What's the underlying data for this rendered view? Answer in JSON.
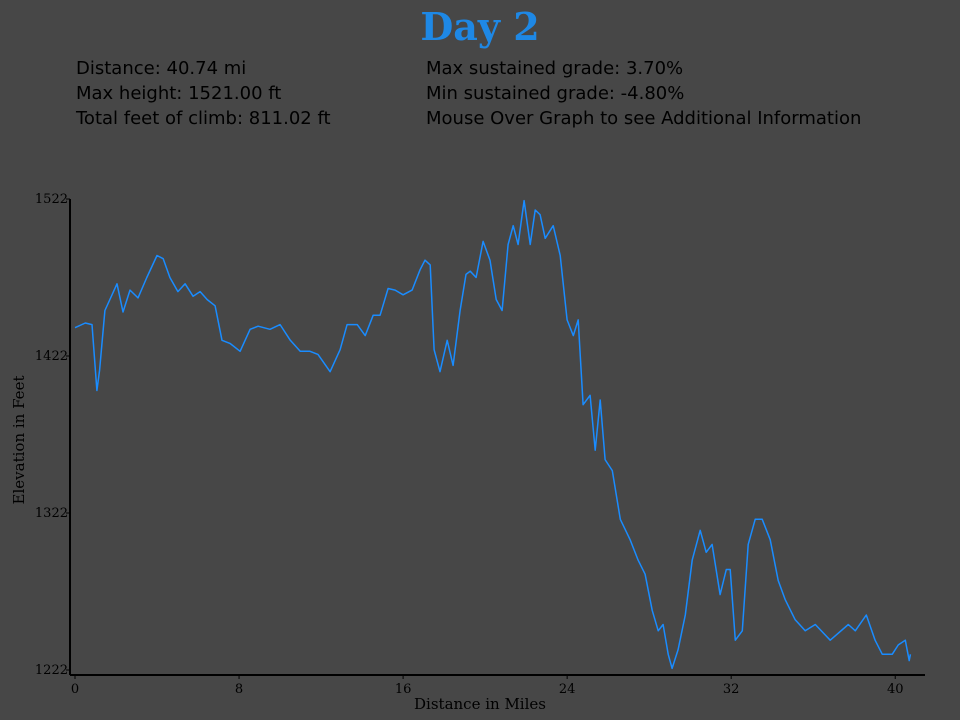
{
  "title": "Day 2",
  "stats": {
    "left": [
      "Distance: 40.74 mi",
      "Max height: 1521.00 ft",
      "Total feet of climb: 811.02 ft"
    ],
    "right": [
      "Max sustained grade: 3.70%",
      "Min sustained grade: -4.80%",
      "Mouse Over Graph to see Additional Information"
    ]
  },
  "chart_data": {
    "type": "line",
    "xlabel": "Distance in Miles",
    "ylabel": "Elevation in Feet",
    "color": "#1a8cff",
    "xlim": [
      0,
      41.5
    ],
    "ylim": [
      1222,
      1522
    ],
    "xticks": [
      0,
      8,
      16,
      24,
      32,
      40
    ],
    "yticks": [
      1222,
      1322,
      1422,
      1522
    ],
    "x": [
      0,
      0.5,
      0.83,
      1.07,
      1.2,
      1.46,
      1.7,
      2.05,
      2.34,
      2.68,
      3.07,
      3.5,
      4.0,
      4.3,
      4.63,
      5.02,
      5.37,
      5.76,
      6.1,
      6.44,
      6.83,
      7.17,
      7.56,
      8.05,
      8.54,
      8.93,
      9.51,
      10.0,
      10.5,
      10.98,
      11.46,
      11.85,
      12.44,
      12.93,
      13.27,
      13.76,
      14.15,
      14.54,
      14.88,
      15.27,
      15.61,
      16.0,
      16.44,
      16.83,
      17.07,
      17.32,
      17.51,
      17.8,
      18.15,
      18.44,
      18.78,
      19.07,
      19.27,
      19.56,
      19.9,
      20.24,
      20.54,
      20.83,
      21.12,
      21.37,
      21.61,
      21.9,
      22.2,
      22.44,
      22.68,
      22.93,
      23.32,
      23.66,
      24.0,
      24.3,
      24.54,
      24.78,
      25.12,
      25.37,
      25.61,
      25.85,
      26.2,
      26.59,
      27.07,
      27.46,
      27.8,
      28.15,
      28.44,
      28.68,
      28.93,
      29.12,
      29.41,
      29.76,
      30.1,
      30.49,
      30.78,
      31.07,
      31.46,
      31.76,
      31.95,
      32.2,
      32.54,
      32.83,
      33.17,
      33.51,
      33.9,
      34.29,
      34.63,
      35.12,
      35.61,
      36.1,
      36.83,
      37.71,
      38.05,
      38.59,
      39.02,
      39.37,
      39.85,
      40.15,
      40.49,
      40.68,
      40.74
    ],
    "values": [
      1440,
      1443,
      1442,
      1400,
      1413,
      1451,
      1458,
      1468,
      1450,
      1464,
      1459,
      1472,
      1486,
      1484,
      1472,
      1463,
      1468,
      1460,
      1463,
      1458,
      1454,
      1432,
      1430,
      1425,
      1439,
      1441,
      1439,
      1442,
      1432,
      1425,
      1425,
      1423,
      1412,
      1426,
      1442,
      1442,
      1435,
      1448,
      1448,
      1465,
      1464,
      1461,
      1464,
      1477,
      1483,
      1480,
      1426,
      1412,
      1432,
      1416,
      1451,
      1474,
      1476,
      1472,
      1495,
      1483,
      1458,
      1451,
      1493,
      1505,
      1493,
      1521,
      1493,
      1515,
      1512,
      1497,
      1505,
      1486,
      1445,
      1435,
      1445,
      1391,
      1397,
      1362,
      1394,
      1356,
      1349,
      1318,
      1305,
      1292,
      1283,
      1260,
      1247,
      1251,
      1232,
      1223,
      1235,
      1257,
      1292,
      1311,
      1297,
      1302,
      1270,
      1286,
      1286,
      1241,
      1247,
      1302,
      1318,
      1318,
      1305,
      1279,
      1267,
      1254,
      1247,
      1251,
      1241,
      1251,
      1247,
      1257,
      1241,
      1232,
      1232,
      1238,
      1241,
      1228,
      1232
    ]
  }
}
